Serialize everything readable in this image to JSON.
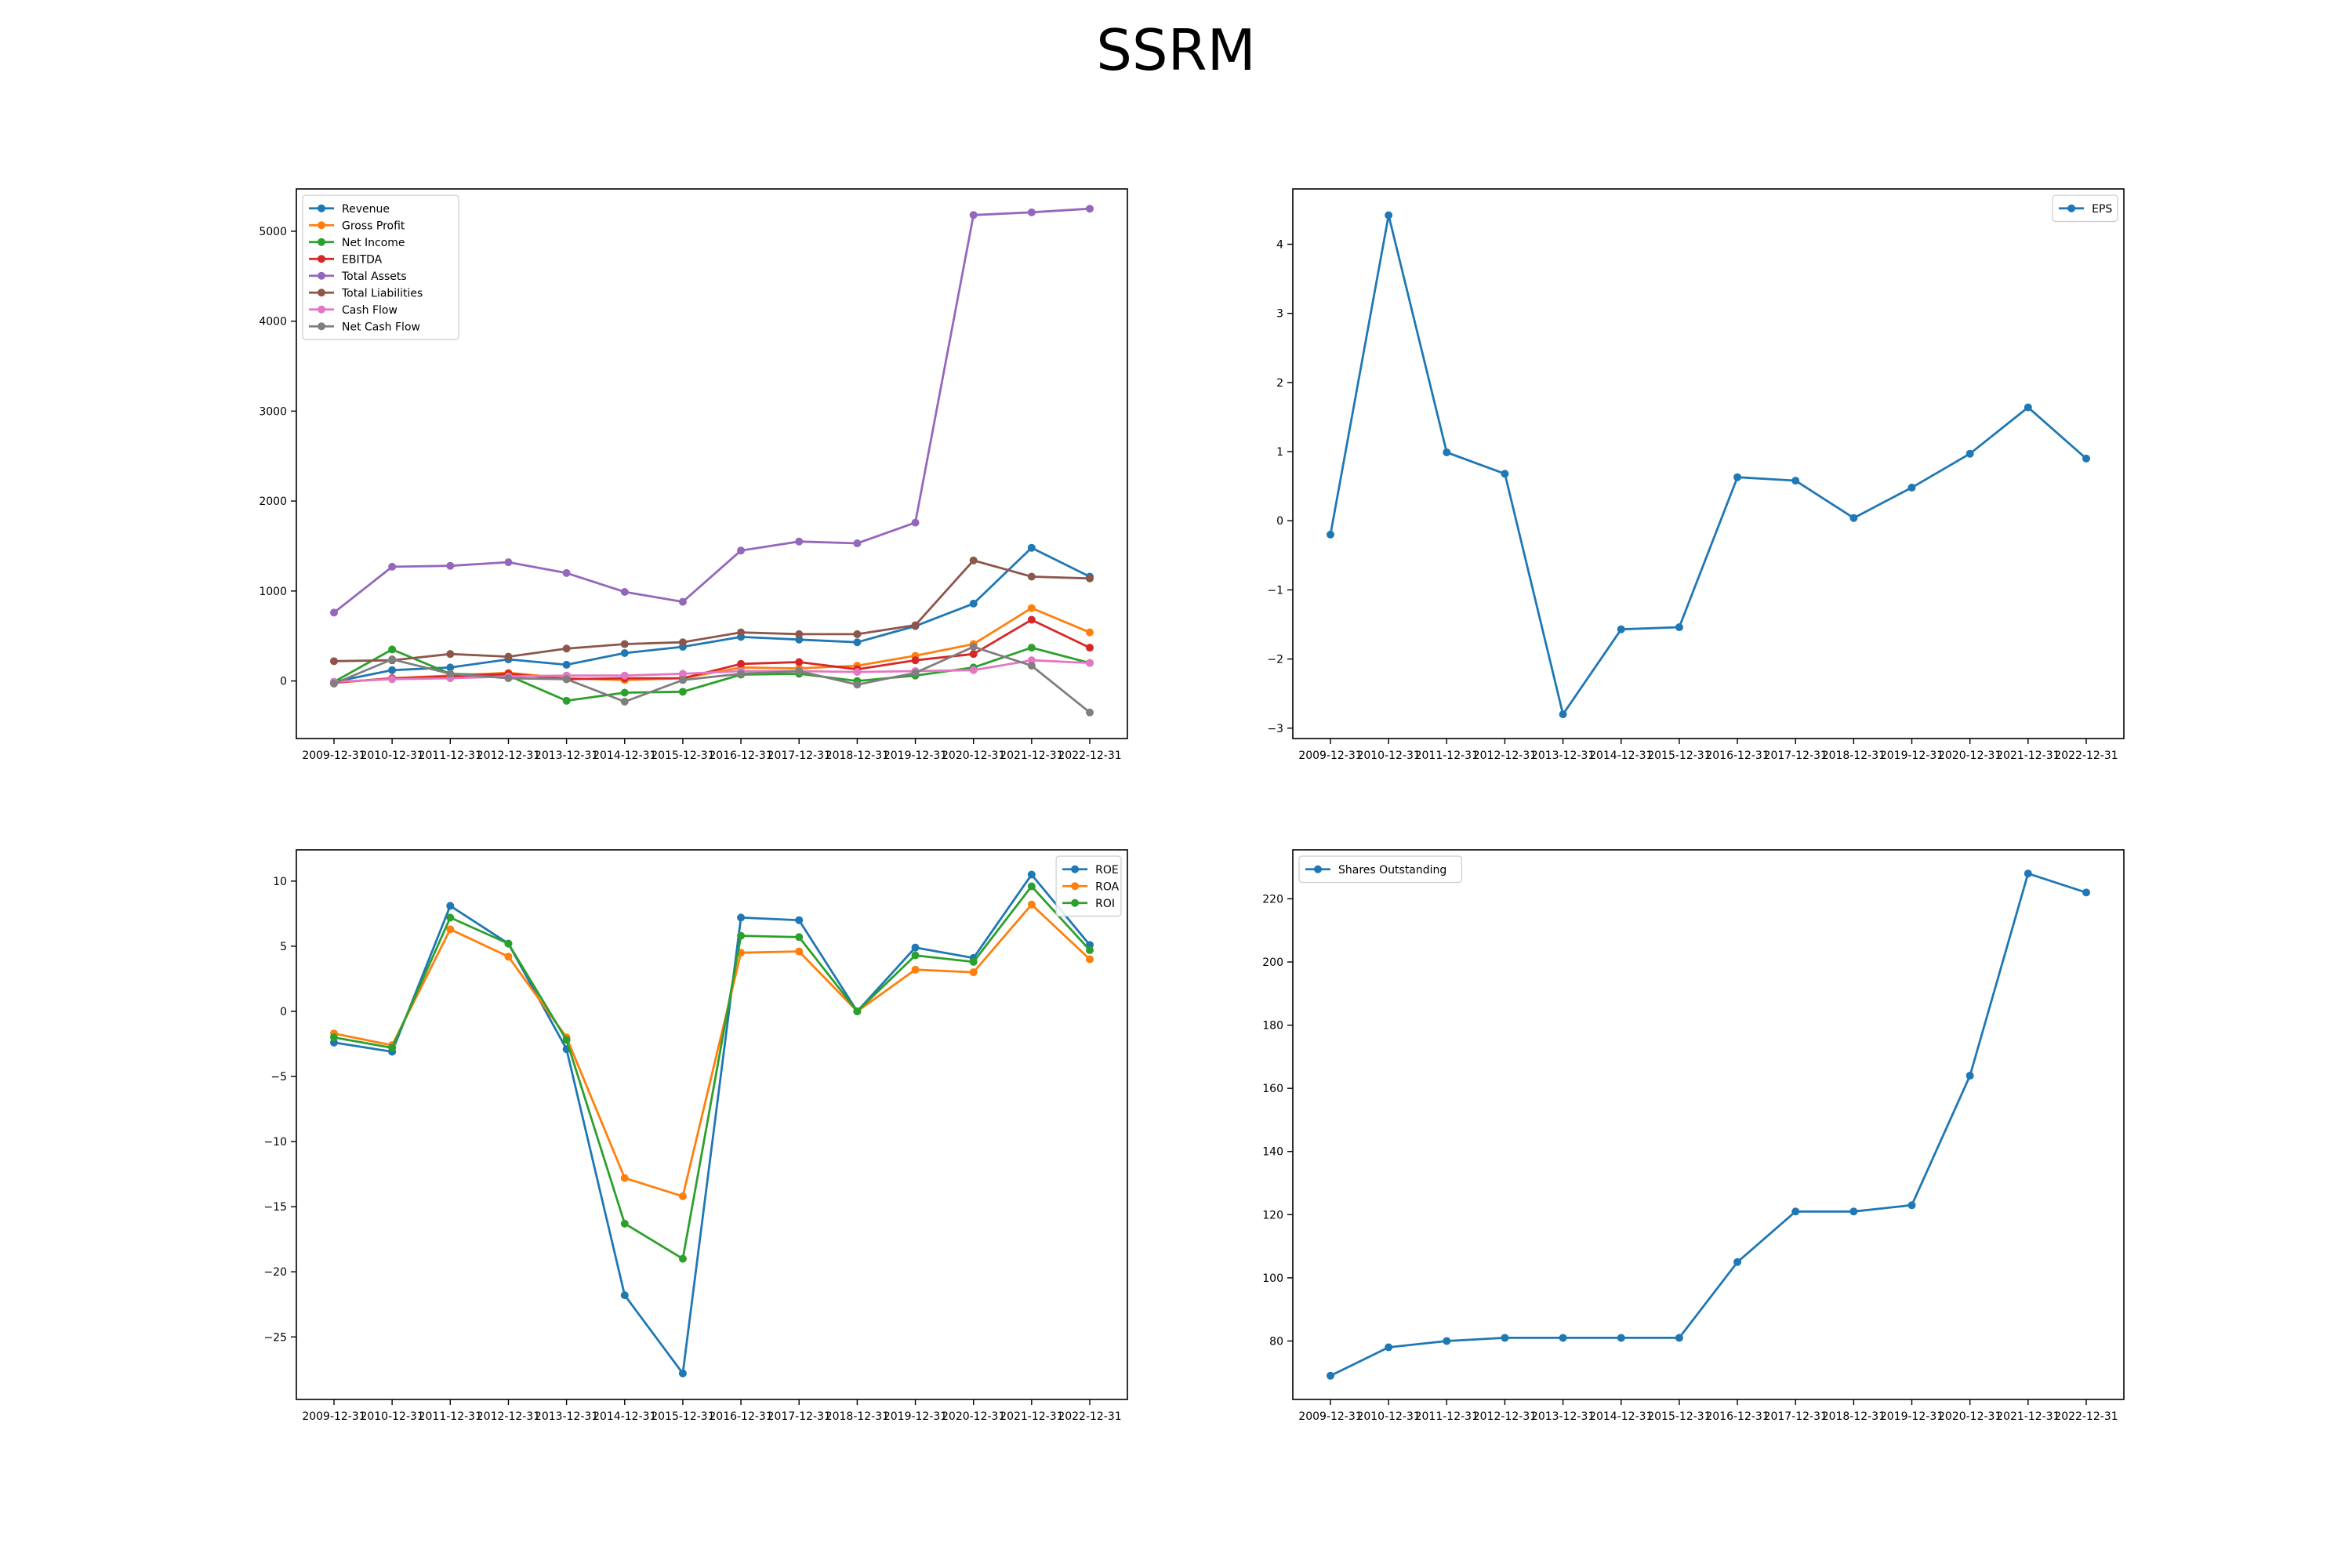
{
  "title": "SSRM",
  "colors": {
    "c0": "#1f77b4",
    "c1": "#ff7f0e",
    "c2": "#2ca02c",
    "c3": "#d62728",
    "c4": "#9467bd",
    "c5": "#8c564b",
    "c6": "#e377c2",
    "c7": "#7f7f7f"
  },
  "chart_data": [
    {
      "type": "line",
      "title": "",
      "xlabel": "",
      "ylabel": "",
      "x": [
        "2009-12-31",
        "2010-12-31",
        "2011-12-31",
        "2012-12-31",
        "2013-12-31",
        "2014-12-31",
        "2015-12-31",
        "2016-12-31",
        "2017-12-31",
        "2018-12-31",
        "2019-12-31",
        "2020-12-31",
        "2021-12-31",
        "2022-12-31"
      ],
      "ylim": [
        -640,
        5470
      ],
      "yticks": [
        0,
        1000,
        2000,
        3000,
        4000,
        5000
      ],
      "legend": "upper-left",
      "grid": false,
      "series": [
        {
          "name": "Revenue",
          "color": "#1f77b4",
          "values": [
            -10,
            120,
            150,
            240,
            180,
            310,
            380,
            490,
            460,
            430,
            610,
            860,
            1480,
            1160
          ]
        },
        {
          "name": "Gross Profit",
          "color": "#ff7f0e",
          "values": [
            -20,
            30,
            60,
            90,
            30,
            10,
            30,
            150,
            140,
            170,
            280,
            410,
            810,
            540
          ]
        },
        {
          "name": "Net Income",
          "color": "#2ca02c",
          "values": [
            -10,
            350,
            80,
            60,
            -220,
            -130,
            -120,
            70,
            80,
            0,
            60,
            150,
            370,
            200
          ]
        },
        {
          "name": "EBITDA",
          "color": "#d62728",
          "values": [
            -20,
            30,
            50,
            80,
            20,
            30,
            30,
            190,
            210,
            130,
            230,
            300,
            680,
            370
          ]
        },
        {
          "name": "Total Assets",
          "color": "#9467bd",
          "values": [
            760,
            1270,
            1280,
            1320,
            1200,
            990,
            880,
            1450,
            1550,
            1530,
            1760,
            5180,
            5210,
            5250
          ]
        },
        {
          "name": "Total Liabilities",
          "color": "#8c564b",
          "values": [
            220,
            230,
            300,
            270,
            360,
            410,
            430,
            540,
            520,
            520,
            620,
            1340,
            1160,
            1140
          ]
        },
        {
          "name": "Cash Flow",
          "color": "#e377c2",
          "values": [
            -10,
            20,
            30,
            50,
            60,
            60,
            80,
            110,
            110,
            100,
            110,
            120,
            230,
            200
          ]
        },
        {
          "name": "Net Cash Flow",
          "color": "#7f7f7f",
          "values": [
            -30,
            240,
            80,
            30,
            20,
            -230,
            10,
            80,
            110,
            -40,
            90,
            380,
            170,
            -350
          ]
        }
      ]
    },
    {
      "type": "line",
      "title": "",
      "xlabel": "",
      "ylabel": "",
      "x": [
        "2009-12-31",
        "2010-12-31",
        "2011-12-31",
        "2012-12-31",
        "2013-12-31",
        "2014-12-31",
        "2015-12-31",
        "2016-12-31",
        "2017-12-31",
        "2018-12-31",
        "2019-12-31",
        "2020-12-31",
        "2021-12-31",
        "2022-12-31"
      ],
      "ylim": [
        -3.15,
        4.8
      ],
      "yticks": [
        -3,
        -2,
        -1,
        0,
        1,
        2,
        3,
        4
      ],
      "legend": "upper-right",
      "grid": false,
      "series": [
        {
          "name": "EPS",
          "color": "#1f77b4",
          "values": [
            -0.2,
            4.42,
            0.99,
            0.68,
            -2.8,
            -1.57,
            -1.54,
            0.63,
            0.58,
            0.04,
            0.48,
            0.97,
            1.64,
            0.9
          ]
        }
      ]
    },
    {
      "type": "line",
      "title": "",
      "xlabel": "",
      "ylabel": "",
      "x": [
        "2009-12-31",
        "2010-12-31",
        "2011-12-31",
        "2012-12-31",
        "2013-12-31",
        "2014-12-31",
        "2015-12-31",
        "2016-12-31",
        "2017-12-31",
        "2018-12-31",
        "2019-12-31",
        "2020-12-31",
        "2021-12-31",
        "2022-12-31"
      ],
      "ylim": [
        -29.8,
        12.4
      ],
      "yticks": [
        -25,
        -20,
        -15,
        -10,
        -5,
        0,
        5,
        10
      ],
      "legend": "upper-right",
      "grid": false,
      "series": [
        {
          "name": "ROE",
          "color": "#1f77b4",
          "values": [
            -2.4,
            -3.1,
            8.1,
            5.2,
            -2.9,
            -21.8,
            -27.8,
            7.2,
            7.0,
            0.0,
            4.9,
            4.1,
            10.5,
            5.1
          ]
        },
        {
          "name": "ROA",
          "color": "#ff7f0e",
          "values": [
            -1.7,
            -2.6,
            6.3,
            4.2,
            -2.0,
            -12.8,
            -14.2,
            4.5,
            4.6,
            0.0,
            3.2,
            3.0,
            8.2,
            4.0
          ]
        },
        {
          "name": "ROI",
          "color": "#2ca02c",
          "values": [
            -2.0,
            -2.8,
            7.2,
            5.2,
            -2.2,
            -16.3,
            -19.0,
            5.8,
            5.7,
            0.0,
            4.3,
            3.8,
            9.6,
            4.7
          ]
        }
      ]
    },
    {
      "type": "line",
      "title": "",
      "xlabel": "",
      "ylabel": "",
      "x": [
        "2009-12-31",
        "2010-12-31",
        "2011-12-31",
        "2012-12-31",
        "2013-12-31",
        "2014-12-31",
        "2015-12-31",
        "2016-12-31",
        "2017-12-31",
        "2018-12-31",
        "2019-12-31",
        "2020-12-31",
        "2021-12-31",
        "2022-12-31"
      ],
      "ylim": [
        61.5,
        235.5
      ],
      "yticks": [
        80,
        100,
        120,
        140,
        160,
        180,
        200,
        220
      ],
      "legend": "upper-left",
      "grid": false,
      "series": [
        {
          "name": "Shares Outstanding",
          "color": "#1f77b4",
          "values": [
            69,
            78,
            80,
            81,
            81,
            81,
            81,
            105,
            121,
            121,
            123,
            164,
            228,
            222
          ]
        }
      ]
    }
  ]
}
